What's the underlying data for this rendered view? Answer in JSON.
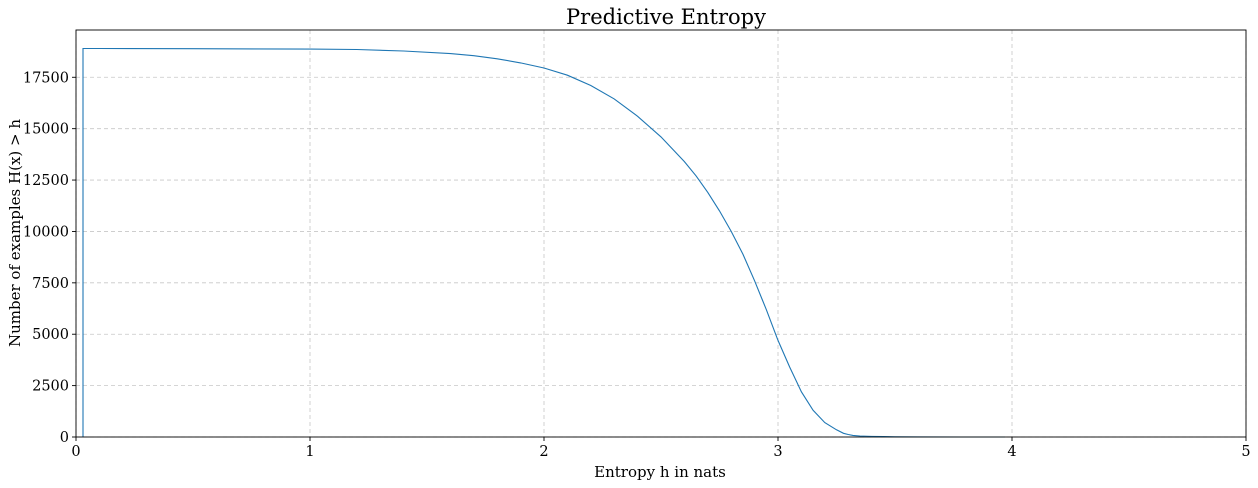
{
  "chart_data": {
    "type": "line",
    "title": "Predictive Entropy",
    "xlabel": "Entropy h in nats",
    "ylabel": "Number of examples H(x) > h",
    "xlim": [
      0,
      5
    ],
    "ylim": [
      0,
      19800
    ],
    "xticks": [
      0,
      1,
      2,
      3,
      4,
      5
    ],
    "xtick_labels": [
      "0",
      "1",
      "2",
      "3",
      "4",
      "5"
    ],
    "yticks": [
      0,
      2500,
      5000,
      7500,
      10000,
      12500,
      15000,
      17500
    ],
    "ytick_labels": [
      "0",
      "2500",
      "5000",
      "7500",
      "10000",
      "12500",
      "15000",
      "17500"
    ],
    "grid": true,
    "line_color": "#1f77b4",
    "series": [
      {
        "x": [
          0.03,
          0.03,
          0.1,
          0.5,
          1.0,
          1.2,
          1.4,
          1.6,
          1.7,
          1.8,
          1.9,
          2.0,
          2.1,
          2.2,
          2.3,
          2.4,
          2.5,
          2.6,
          2.65,
          2.7,
          2.75,
          2.8,
          2.85,
          2.9,
          2.95,
          3.0,
          3.05,
          3.1,
          3.15,
          3.2,
          3.25,
          3.28,
          3.3,
          3.32,
          3.35,
          3.4,
          3.45,
          3.5,
          3.6,
          3.8,
          3.97
        ],
        "y": [
          0,
          18900,
          18900,
          18890,
          18870,
          18850,
          18780,
          18650,
          18550,
          18400,
          18200,
          17950,
          17600,
          17100,
          16450,
          15600,
          14600,
          13400,
          12700,
          11900,
          11000,
          10000,
          8900,
          7600,
          6200,
          4700,
          3400,
          2200,
          1300,
          700,
          350,
          180,
          120,
          80,
          50,
          30,
          20,
          12,
          6,
          2,
          0
        ]
      }
    ]
  }
}
